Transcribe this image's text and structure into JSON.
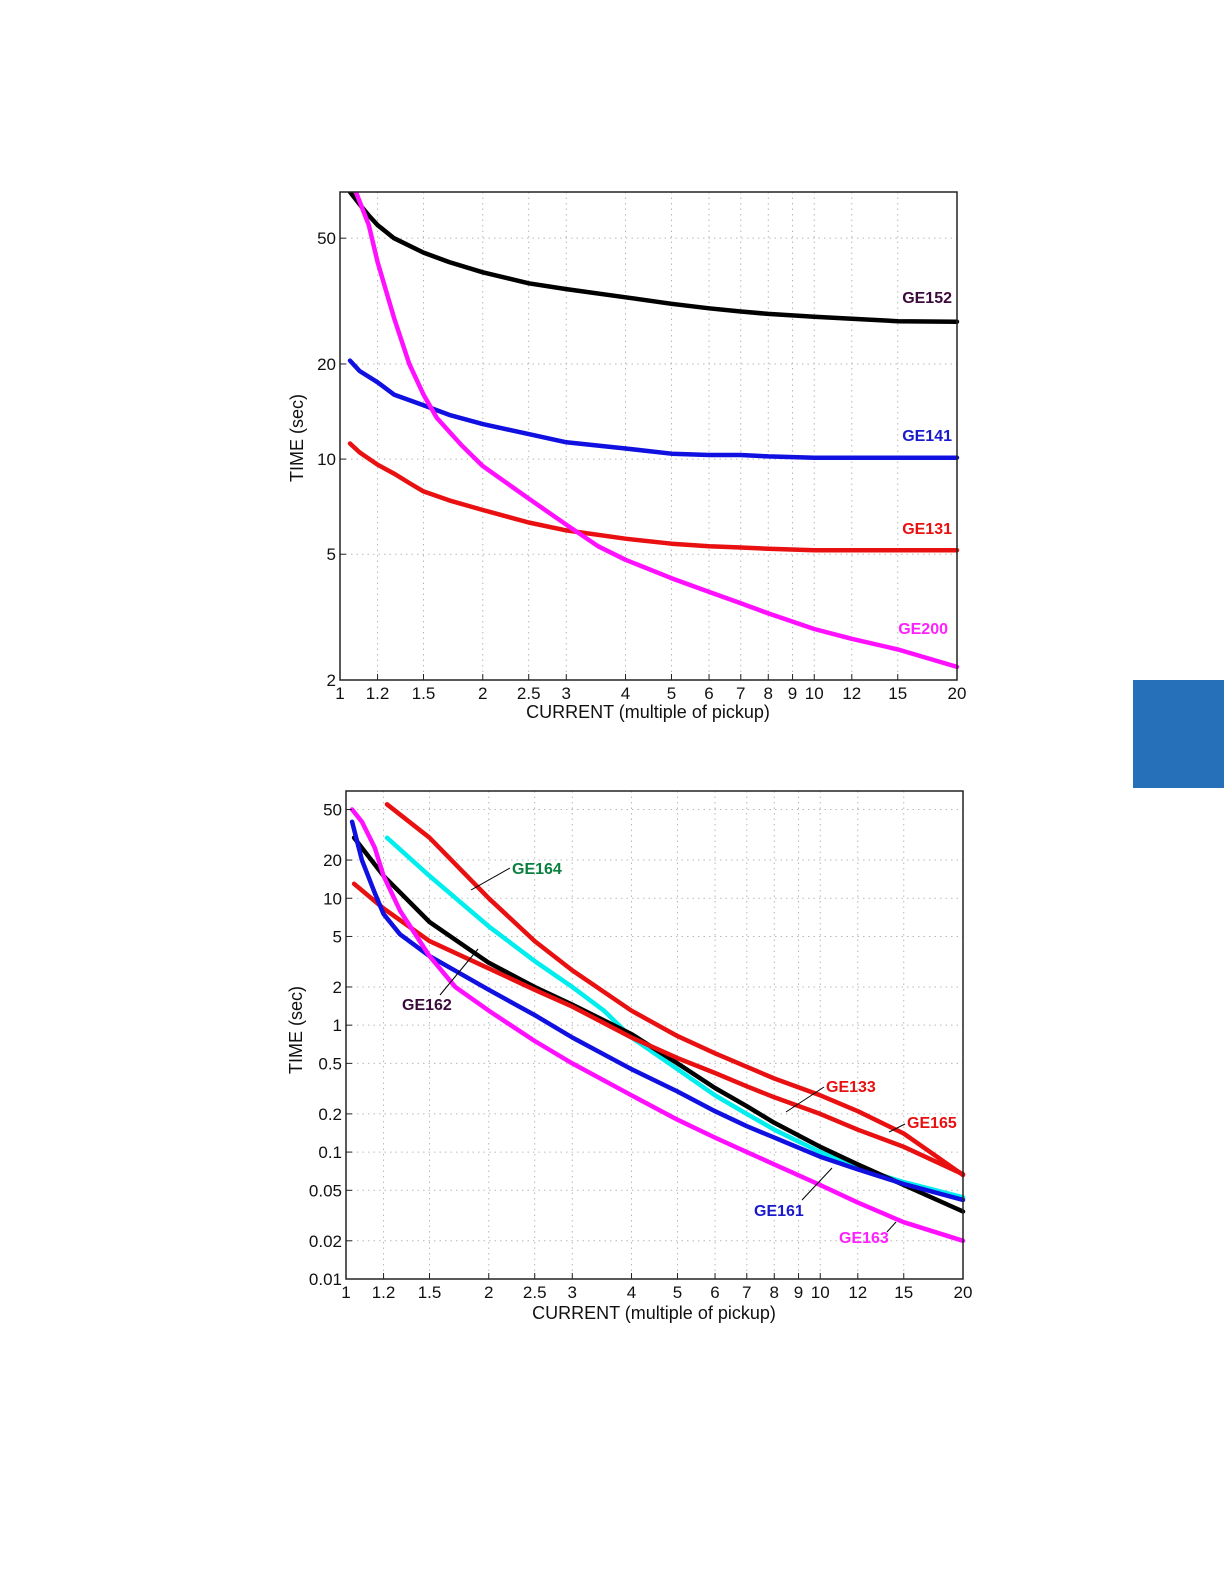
{
  "side_tab": {
    "color": "#2570b8"
  },
  "chart_data": [
    {
      "type": "line",
      "title": "",
      "xlabel": "CURRENT (multiple of pickup)",
      "ylabel": "TIME (sec)",
      "x_scale": "log",
      "y_scale": "log",
      "xlim": [
        1,
        20
      ],
      "ylim": [
        2,
        70
      ],
      "grid": true,
      "xticks": [
        1,
        1.2,
        1.5,
        2,
        2.5,
        3,
        4,
        5,
        6,
        7,
        8,
        9,
        10,
        12,
        15,
        20
      ],
      "xtick_labels": [
        "1",
        "1.2",
        "1.5",
        "2",
        "2.5",
        "3",
        "4",
        "5",
        "6",
        "7",
        "8",
        "9",
        "10",
        "12",
        "15",
        "20"
      ],
      "yticks": [
        2,
        5,
        10,
        20,
        50
      ],
      "ytick_labels": [
        "2",
        "5",
        "10",
        "20",
        "50"
      ],
      "series": [
        {
          "name": "GE152",
          "color": "#000000",
          "label_color": "#3a0a3a",
          "x": [
            1.05,
            1.1,
            1.15,
            1.2,
            1.3,
            1.5,
            1.7,
            2,
            2.5,
            3,
            4,
            5,
            6,
            7,
            8,
            10,
            12,
            15,
            20
          ],
          "y": [
            70,
            64,
            59,
            55,
            50,
            45,
            42,
            39,
            36,
            34.5,
            32.5,
            31,
            30,
            29.3,
            28.8,
            28.2,
            27.8,
            27.3,
            27.2
          ]
        },
        {
          "name": "GE141",
          "color": "#1010e0",
          "label_color": "#1a1acc",
          "x": [
            1.05,
            1.1,
            1.2,
            1.3,
            1.5,
            1.7,
            2,
            2.5,
            3,
            4,
            5,
            6,
            7,
            8,
            10,
            12,
            15,
            20
          ],
          "y": [
            20.5,
            19,
            17.5,
            16,
            14.8,
            13.8,
            12.9,
            12,
            11.3,
            10.8,
            10.4,
            10.3,
            10.3,
            10.2,
            10.1,
            10.1,
            10.1,
            10.1
          ]
        },
        {
          "name": "GE131",
          "color": "#e81010",
          "label_color": "#e81010",
          "x": [
            1.05,
            1.1,
            1.2,
            1.3,
            1.4,
            1.5,
            1.7,
            2,
            2.5,
            3,
            4,
            5,
            6,
            7,
            8,
            10,
            12,
            15,
            20
          ],
          "y": [
            11.2,
            10.5,
            9.6,
            9,
            8.4,
            7.9,
            7.4,
            6.9,
            6.3,
            5.95,
            5.6,
            5.4,
            5.3,
            5.25,
            5.2,
            5.15,
            5.15,
            5.15,
            5.15
          ]
        },
        {
          "name": "GE200",
          "color": "#ff10ff",
          "label_color": "#ff20ff",
          "x": [
            1.08,
            1.15,
            1.2,
            1.3,
            1.4,
            1.5,
            1.6,
            1.8,
            2,
            2.5,
            3,
            3.5,
            4,
            5,
            6,
            7,
            8,
            10,
            12,
            15,
            20
          ],
          "y": [
            70,
            55,
            42,
            28,
            20,
            16,
            13.5,
            11.1,
            9.5,
            7.5,
            6.2,
            5.3,
            4.8,
            4.2,
            3.8,
            3.5,
            3.25,
            2.9,
            2.7,
            2.5,
            2.2
          ]
        }
      ],
      "annotations": [],
      "legend": "labels beside curves"
    },
    {
      "type": "line",
      "title": "",
      "xlabel": "CURRENT (multiple of pickup)",
      "ylabel": "TIME (sec)",
      "x_scale": "log",
      "y_scale": "log",
      "xlim": [
        1,
        20
      ],
      "ylim": [
        0.01,
        70
      ],
      "grid": true,
      "xticks": [
        1,
        1.2,
        1.5,
        2,
        2.5,
        3,
        4,
        5,
        6,
        7,
        8,
        9,
        10,
        12,
        15,
        20
      ],
      "xtick_labels": [
        "1",
        "1.2",
        "1.5",
        "2",
        "2.5",
        "3",
        "4",
        "5",
        "6",
        "7",
        "8",
        "9",
        "10",
        "12",
        "15",
        "20"
      ],
      "yticks": [
        0.01,
        0.02,
        0.05,
        0.1,
        0.2,
        0.5,
        1,
        2,
        5,
        10,
        20,
        50
      ],
      "ytick_labels": [
        "0.01",
        "0.02",
        "0.05",
        "0.1",
        "0.2",
        "0.5",
        "1",
        "2",
        "5",
        "10",
        "20",
        "50"
      ],
      "series": [
        {
          "name": "GE164",
          "color": "#00eeee",
          "label_color": "#0a8040",
          "x": [
            1.22,
            1.5,
            2,
            2.5,
            3,
            3.5,
            4,
            5,
            6,
            7,
            8,
            10,
            12,
            15,
            20
          ],
          "y": [
            30,
            15,
            6,
            3.2,
            2,
            1.3,
            0.8,
            0.45,
            0.28,
            0.2,
            0.15,
            0.1,
            0.075,
            0.058,
            0.044
          ]
        },
        {
          "name": "GE162",
          "color": "#000000",
          "label_color": "#3a0a3a",
          "x": [
            1.04,
            1.2,
            1.5,
            2,
            2.5,
            3,
            4,
            5,
            6,
            7,
            8,
            10,
            12,
            15,
            20
          ],
          "y": [
            30,
            15,
            6.5,
            3.1,
            2,
            1.45,
            0.85,
            0.5,
            0.32,
            0.23,
            0.17,
            0.11,
            0.08,
            0.055,
            0.034
          ]
        },
        {
          "name": "GE133",
          "color": "#e81010",
          "label_color": "#e81010",
          "x": [
            1.04,
            1.2,
            1.5,
            2,
            2.5,
            3,
            4,
            5,
            6,
            7,
            8,
            10,
            12,
            15,
            20
          ],
          "y": [
            13,
            8.3,
            4.6,
            2.8,
            1.9,
            1.4,
            0.8,
            0.55,
            0.42,
            0.33,
            0.27,
            0.2,
            0.15,
            0.11,
            0.067
          ]
        },
        {
          "name": "GE165",
          "color": "#e81010",
          "label_color": "#e81010",
          "x": [
            1.22,
            1.5,
            2,
            2.5,
            3,
            4,
            5,
            6,
            7,
            8,
            10,
            12,
            15,
            20
          ],
          "y": [
            55,
            30,
            10,
            4.6,
            2.7,
            1.3,
            0.82,
            0.6,
            0.47,
            0.38,
            0.28,
            0.21,
            0.14,
            0.066
          ]
        },
        {
          "name": "GE161",
          "color": "#1010e0",
          "label_color": "#1a1acc",
          "x": [
            1.03,
            1.08,
            1.15,
            1.2,
            1.3,
            1.5,
            2,
            2.5,
            3,
            4,
            5,
            6,
            7,
            8,
            10,
            12,
            15,
            20
          ],
          "y": [
            40,
            20,
            11,
            7.5,
            5.2,
            3.5,
            1.9,
            1.2,
            0.8,
            0.45,
            0.3,
            0.21,
            0.16,
            0.13,
            0.092,
            0.073,
            0.056,
            0.042
          ]
        },
        {
          "name": "GE163",
          "color": "#ff10ff",
          "label_color": "#ff20ff",
          "x": [
            1.03,
            1.08,
            1.15,
            1.2,
            1.3,
            1.5,
            1.7,
            2,
            2.5,
            3,
            4,
            5,
            6,
            7,
            8,
            10,
            12,
            15,
            20
          ],
          "y": [
            50,
            40,
            25,
            15,
            8,
            3.5,
            2,
            1.3,
            0.75,
            0.5,
            0.28,
            0.18,
            0.13,
            0.1,
            0.08,
            0.055,
            0.04,
            0.028,
            0.02
          ]
        }
      ],
      "annotations": [],
      "legend": "labels beside curves"
    }
  ]
}
